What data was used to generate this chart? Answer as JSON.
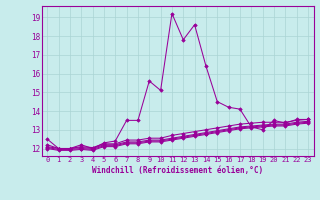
{
  "xlabel": "Windchill (Refroidissement éolien,°C)",
  "background_color": "#c8ecec",
  "grid_color": "#aad4d4",
  "line_color": "#990099",
  "xlim": [
    -0.5,
    23.5
  ],
  "ylim": [
    11.6,
    19.6
  ],
  "yticks": [
    12,
    13,
    14,
    15,
    16,
    17,
    18,
    19
  ],
  "xticks": [
    0,
    1,
    2,
    3,
    4,
    5,
    6,
    7,
    8,
    9,
    10,
    11,
    12,
    13,
    14,
    15,
    16,
    17,
    18,
    19,
    20,
    21,
    22,
    23
  ],
  "series": [
    [
      12.5,
      12.0,
      12.0,
      12.2,
      12.0,
      12.3,
      12.4,
      13.5,
      13.5,
      15.6,
      15.1,
      19.2,
      17.8,
      18.6,
      16.4,
      14.5,
      14.2,
      14.1,
      13.15,
      13.0,
      13.5,
      13.35,
      13.55,
      13.55
    ],
    [
      12.2,
      12.0,
      12.0,
      12.1,
      12.05,
      12.25,
      12.25,
      12.45,
      12.45,
      12.55,
      12.55,
      12.7,
      12.8,
      12.9,
      13.0,
      13.1,
      13.2,
      13.3,
      13.35,
      13.4,
      13.4,
      13.4,
      13.5,
      13.55
    ],
    [
      12.1,
      12.0,
      12.0,
      12.05,
      12.0,
      12.2,
      12.2,
      12.35,
      12.35,
      12.45,
      12.45,
      12.55,
      12.65,
      12.75,
      12.85,
      12.95,
      13.05,
      13.15,
      13.2,
      13.25,
      13.3,
      13.3,
      13.4,
      13.45
    ],
    [
      12.05,
      11.95,
      11.95,
      12.0,
      11.95,
      12.15,
      12.15,
      12.3,
      12.3,
      12.4,
      12.4,
      12.5,
      12.6,
      12.7,
      12.8,
      12.9,
      13.0,
      13.1,
      13.15,
      13.2,
      13.25,
      13.25,
      13.35,
      13.4
    ],
    [
      12.0,
      11.9,
      11.9,
      11.95,
      11.9,
      12.1,
      12.1,
      12.25,
      12.25,
      12.35,
      12.35,
      12.45,
      12.55,
      12.65,
      12.75,
      12.85,
      12.95,
      13.05,
      13.1,
      13.15,
      13.2,
      13.2,
      13.3,
      13.35
    ]
  ]
}
